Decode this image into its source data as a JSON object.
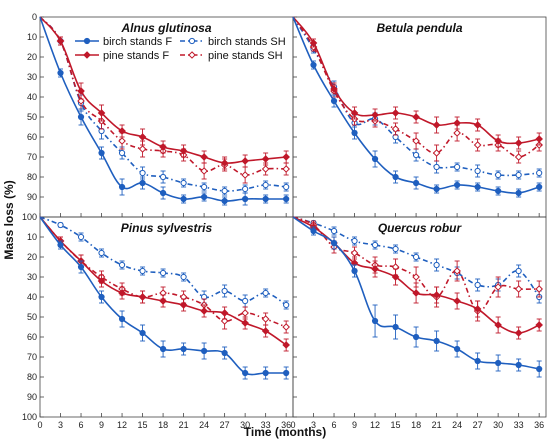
{
  "chart_data": {
    "type": "line",
    "xlabel": "Time (months)",
    "ylabel": "Mass loss (%)",
    "x_ticks": [
      0,
      3,
      6,
      9,
      12,
      15,
      18,
      21,
      24,
      27,
      30,
      33,
      36
    ],
    "y_ticks": [
      0,
      10,
      20,
      30,
      40,
      50,
      60,
      70,
      80,
      90,
      100
    ],
    "ylim": [
      0,
      100
    ],
    "xlim": [
      0,
      37
    ],
    "y_inverted": true,
    "grid": false,
    "legend_placement": "top of first panel",
    "colors": {
      "birch": "#1f5fbf",
      "pine": "#c0182a"
    },
    "legend": [
      {
        "key": "birch_F",
        "label": "birch stands F"
      },
      {
        "key": "birch_SH",
        "label": "birch stands SH"
      },
      {
        "key": "pine_F",
        "label": "pine stands F"
      },
      {
        "key": "pine_SH",
        "label": "pine stands SH"
      }
    ],
    "x": [
      0,
      3,
      6,
      9,
      12,
      15,
      18,
      21,
      24,
      27,
      30,
      33,
      36
    ],
    "panels": [
      {
        "title": "Alnus glutinosa",
        "series": [
          {
            "key": "birch_F",
            "values": [
              0,
              28,
              50,
              68,
              85,
              83,
              88,
              91,
              90,
              92,
              91,
              91,
              91
            ],
            "errors": [
              0,
              2,
              4,
              3,
              4,
              3,
              3,
              2,
              2,
              2,
              3,
              2,
              2
            ]
          },
          {
            "key": "birch_SH",
            "values": [
              0,
              12,
              43,
              57,
              68,
              78,
              80,
              83,
              85,
              87,
              86,
              84,
              85
            ],
            "errors": [
              0,
              2,
              4,
              4,
              3,
              3,
              3,
              2,
              2,
              2,
              2,
              2,
              2
            ]
          },
          {
            "key": "pine_F",
            "values": [
              0,
              12,
              37,
              48,
              57,
              60,
              65,
              67,
              70,
              73,
              72,
              71,
              70
            ],
            "errors": [
              0,
              2,
              4,
              4,
              3,
              4,
              3,
              3,
              3,
              3,
              3,
              3,
              3
            ]
          },
          {
            "key": "pine_SH",
            "values": [
              0,
              12,
              42,
              52,
              62,
              66,
              67,
              69,
              77,
              74,
              79,
              76,
              76
            ],
            "errors": [
              0,
              2,
              4,
              4,
              4,
              4,
              3,
              3,
              4,
              3,
              4,
              3,
              3
            ]
          }
        ]
      },
      {
        "title": "Betula pendula",
        "series": [
          {
            "key": "birch_F",
            "values": [
              0,
              24,
              42,
              58,
              71,
              80,
              83,
              86,
              84,
              85,
              87,
              88,
              85
            ],
            "errors": [
              0,
              2,
              3,
              3,
              4,
              3,
              3,
              2,
              2,
              2,
              2,
              2,
              2
            ]
          },
          {
            "key": "birch_SH",
            "values": [
              0,
              16,
              35,
              53,
              51,
              60,
              69,
              75,
              75,
              77,
              79,
              79,
              78
            ],
            "errors": [
              0,
              2,
              3,
              4,
              3,
              3,
              3,
              3,
              2,
              3,
              2,
              2,
              2
            ]
          },
          {
            "key": "pine_F",
            "values": [
              0,
              13,
              36,
              48,
              49,
              48,
              50,
              54,
              53,
              54,
              62,
              63,
              61
            ],
            "errors": [
              0,
              2,
              3,
              3,
              3,
              3,
              3,
              4,
              3,
              3,
              3,
              3,
              3
            ]
          },
          {
            "key": "pine_SH",
            "values": [
              0,
              15,
              37,
              51,
              52,
              56,
              62,
              68,
              58,
              64,
              64,
              70,
              64
            ],
            "errors": [
              0,
              2,
              3,
              3,
              3,
              3,
              4,
              4,
              4,
              3,
              3,
              3,
              3
            ]
          }
        ]
      },
      {
        "title": "Pinus sylvestris",
        "series": [
          {
            "key": "birch_F",
            "values": [
              0,
              14,
              25,
              40,
              51,
              58,
              66,
              66,
              67,
              68,
              78,
              78,
              78
            ],
            "errors": [
              0,
              2,
              3,
              3,
              4,
              4,
              4,
              3,
              4,
              3,
              3,
              3,
              3
            ]
          },
          {
            "key": "birch_SH",
            "values": [
              0,
              4,
              10,
              18,
              24,
              27,
              28,
              30,
              40,
              37,
              42,
              38,
              44
            ],
            "errors": [
              0,
              1,
              2,
              2,
              2,
              2,
              2,
              2,
              3,
              3,
              3,
              2,
              2
            ]
          },
          {
            "key": "pine_F",
            "values": [
              0,
              12,
              22,
              32,
              38,
              40,
              42,
              44,
              47,
              48,
              53,
              57,
              64
            ],
            "errors": [
              0,
              2,
              3,
              3,
              3,
              3,
              3,
              3,
              3,
              3,
              3,
              3,
              3
            ]
          },
          {
            "key": "pine_SH",
            "values": [
              0,
              12,
              22,
              30,
              36,
              40,
              38,
              40,
              44,
              52,
              48,
              51,
              55
            ],
            "errors": [
              0,
              2,
              3,
              3,
              3,
              3,
              3,
              3,
              3,
              4,
              3,
              3,
              3
            ]
          }
        ]
      },
      {
        "title": "Quercus robur",
        "series": [
          {
            "key": "birch_F",
            "values": [
              0,
              7,
              13,
              27,
              52,
              55,
              60,
              62,
              66,
              72,
              73,
              74,
              76
            ],
            "errors": [
              0,
              2,
              3,
              3,
              8,
              6,
              5,
              5,
              4,
              4,
              4,
              3,
              4
            ]
          },
          {
            "key": "birch_SH",
            "values": [
              0,
              3,
              7,
              12,
              14,
              16,
              20,
              24,
              28,
              34,
              34,
              27,
              40
            ],
            "errors": [
              0,
              1,
              2,
              2,
              2,
              2,
              2,
              3,
              3,
              3,
              3,
              3,
              3
            ]
          },
          {
            "key": "pine_F",
            "values": [
              0,
              5,
              13,
              23,
              26,
              30,
              38,
              39,
              42,
              46,
              54,
              58,
              54
            ],
            "errors": [
              0,
              2,
              3,
              3,
              4,
              4,
              5,
              4,
              4,
              4,
              4,
              3,
              3
            ]
          },
          {
            "key": "pine_SH",
            "values": [
              0,
              4,
              15,
              18,
              24,
              25,
              30,
              40,
              27,
              47,
              35,
              36,
              36
            ],
            "errors": [
              0,
              2,
              3,
              3,
              4,
              4,
              5,
              5,
              5,
              5,
              5,
              4,
              4
            ]
          }
        ]
      }
    ]
  }
}
